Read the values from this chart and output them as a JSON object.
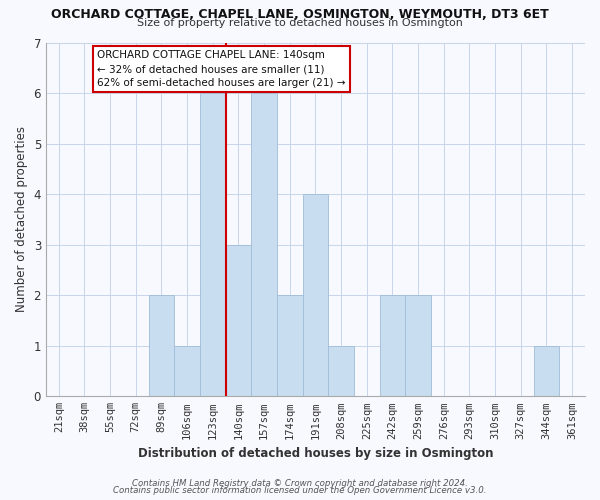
{
  "title": "ORCHARD COTTAGE, CHAPEL LANE, OSMINGTON, WEYMOUTH, DT3 6ET",
  "subtitle": "Size of property relative to detached houses in Osmington",
  "xlabel": "Distribution of detached houses by size in Osmington",
  "ylabel": "Number of detached properties",
  "bar_labels": [
    "21sqm",
    "38sqm",
    "55sqm",
    "72sqm",
    "89sqm",
    "106sqm",
    "123sqm",
    "140sqm",
    "157sqm",
    "174sqm",
    "191sqm",
    "208sqm",
    "225sqm",
    "242sqm",
    "259sqm",
    "276sqm",
    "293sqm",
    "310sqm",
    "327sqm",
    "344sqm",
    "361sqm"
  ],
  "bar_values": [
    0,
    0,
    0,
    0,
    2,
    1,
    6,
    3,
    6,
    2,
    4,
    1,
    0,
    2,
    2,
    0,
    0,
    0,
    0,
    1,
    0
  ],
  "highlight_index": 7,
  "bar_color": "#c9ddf0",
  "bar_edge_color": "#a0bcd8",
  "highlight_line_color": "#cc0000",
  "ylim": [
    0,
    7
  ],
  "yticks": [
    0,
    1,
    2,
    3,
    4,
    5,
    6,
    7
  ],
  "legend_text_line1": "ORCHARD COTTAGE CHAPEL LANE: 140sqm",
  "legend_text_line2": "← 32% of detached houses are smaller (11)",
  "legend_text_line3": "62% of semi-detached houses are larger (21) →",
  "footer_line1": "Contains HM Land Registry data © Crown copyright and database right 2024.",
  "footer_line2": "Contains public sector information licensed under the Open Government Licence v3.0.",
  "background_color": "#f8f8ff",
  "grid_color": "#c8d4e8",
  "title_fontsize": 9,
  "subtitle_fontsize": 8,
  "axis_label_fontsize": 8.5,
  "tick_fontsize": 7.5,
  "legend_fontsize": 7.5,
  "footer_fontsize": 6.2
}
